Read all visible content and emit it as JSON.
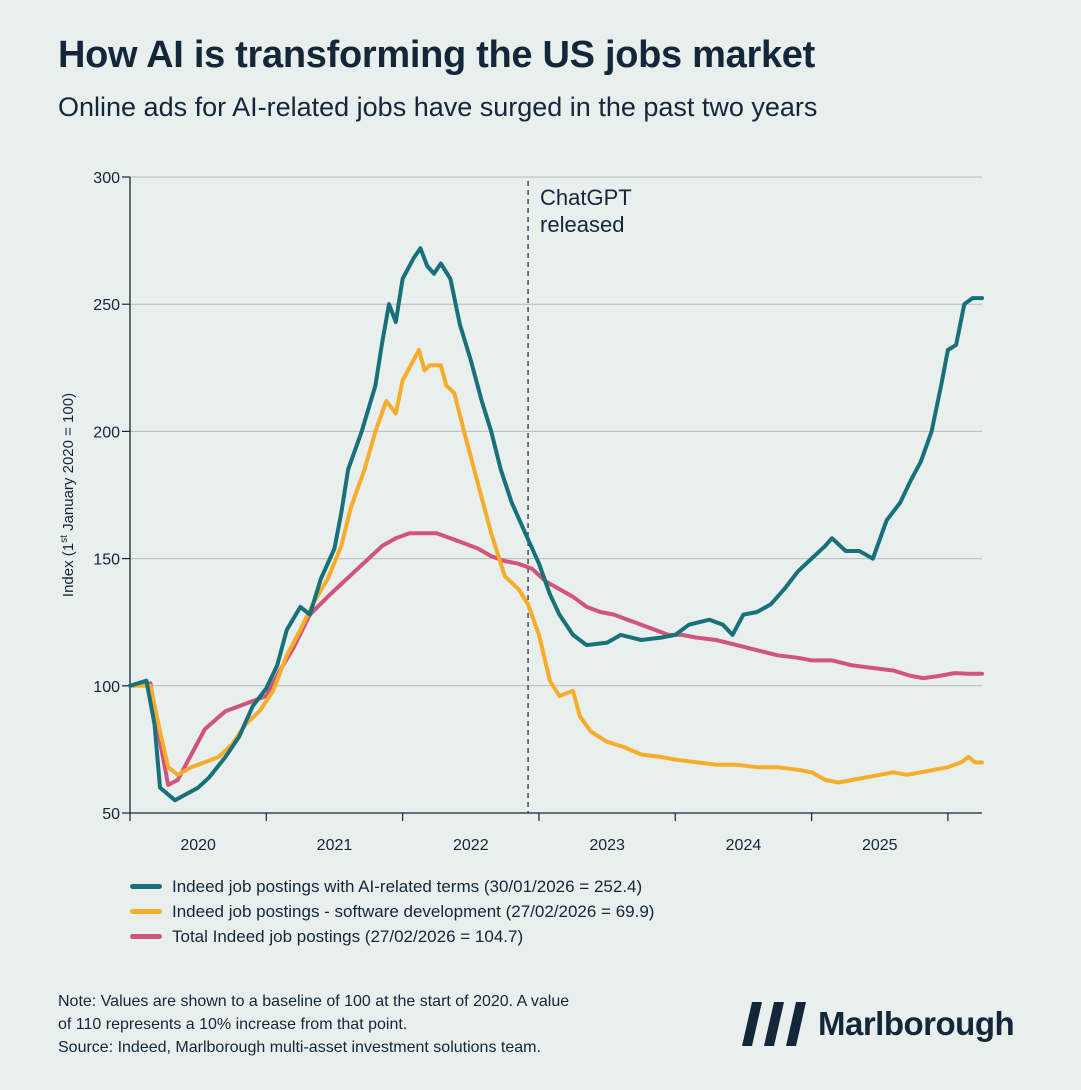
{
  "header": {
    "title": "How AI is transforming the US jobs market",
    "subtitle": "Online ads for AI-related jobs have surged in the past two years"
  },
  "chart_data": {
    "type": "line",
    "ylabel": "Index (1st January 2020 = 100)",
    "ylabel_parts": {
      "pre": "Index (1",
      "sup": "st",
      "post": " January 2020 = 100)"
    },
    "ylim": [
      50,
      300
    ],
    "yticks": [
      50,
      100,
      150,
      200,
      250,
      300
    ],
    "xlim": [
      2020.0,
      2026.25
    ],
    "x_tick_labels": [
      {
        "year": 2020,
        "label": "2020"
      },
      {
        "year": 2021,
        "label": "2021"
      },
      {
        "year": 2022,
        "label": "2022"
      },
      {
        "year": 2023,
        "label": "2023"
      },
      {
        "year": 2024,
        "label": "2024"
      },
      {
        "year": 2025,
        "label": "2025"
      }
    ],
    "x_tick_marks": [
      2020,
      2021,
      2022,
      2023,
      2024,
      2025,
      2026
    ],
    "grid": "horizontal",
    "annotation": {
      "x": 2022.92,
      "lines": [
        "ChatGPT",
        "released"
      ],
      "style": "dashed-vertical"
    },
    "series": [
      {
        "name": "Indeed job postings with AI-related terms (30/01/2026 = 252.4)",
        "color": "#17707a",
        "points": [
          [
            2020.0,
            100
          ],
          [
            2020.12,
            102
          ],
          [
            2020.18,
            85
          ],
          [
            2020.22,
            60
          ],
          [
            2020.33,
            55
          ],
          [
            2020.5,
            60
          ],
          [
            2020.58,
            64
          ],
          [
            2020.7,
            72
          ],
          [
            2020.8,
            80
          ],
          [
            2020.9,
            92
          ],
          [
            2021.0,
            99
          ],
          [
            2021.08,
            108
          ],
          [
            2021.15,
            122
          ],
          [
            2021.25,
            131
          ],
          [
            2021.32,
            128
          ],
          [
            2021.4,
            142
          ],
          [
            2021.5,
            154
          ],
          [
            2021.55,
            168
          ],
          [
            2021.6,
            185
          ],
          [
            2021.7,
            200
          ],
          [
            2021.8,
            218
          ],
          [
            2021.85,
            235
          ],
          [
            2021.9,
            250
          ],
          [
            2021.95,
            243
          ],
          [
            2022.0,
            260
          ],
          [
            2022.08,
            268
          ],
          [
            2022.13,
            272
          ],
          [
            2022.18,
            265
          ],
          [
            2022.23,
            262
          ],
          [
            2022.28,
            266
          ],
          [
            2022.35,
            260
          ],
          [
            2022.42,
            242
          ],
          [
            2022.5,
            228
          ],
          [
            2022.58,
            212
          ],
          [
            2022.65,
            200
          ],
          [
            2022.72,
            185
          ],
          [
            2022.8,
            172
          ],
          [
            2022.9,
            160
          ],
          [
            2023.0,
            148
          ],
          [
            2023.08,
            136
          ],
          [
            2023.15,
            128
          ],
          [
            2023.25,
            120
          ],
          [
            2023.35,
            116
          ],
          [
            2023.5,
            117
          ],
          [
            2023.6,
            120
          ],
          [
            2023.75,
            118
          ],
          [
            2023.9,
            119
          ],
          [
            2024.0,
            120
          ],
          [
            2024.1,
            124
          ],
          [
            2024.25,
            126
          ],
          [
            2024.35,
            124
          ],
          [
            2024.42,
            120
          ],
          [
            2024.5,
            128
          ],
          [
            2024.6,
            129
          ],
          [
            2024.7,
            132
          ],
          [
            2024.8,
            138
          ],
          [
            2024.9,
            145
          ],
          [
            2025.0,
            150
          ],
          [
            2025.1,
            155
          ],
          [
            2025.15,
            158
          ],
          [
            2025.25,
            153
          ],
          [
            2025.35,
            153
          ],
          [
            2025.45,
            150
          ],
          [
            2025.55,
            165
          ],
          [
            2025.65,
            172
          ],
          [
            2025.73,
            181
          ],
          [
            2025.8,
            188
          ],
          [
            2025.88,
            200
          ],
          [
            2025.95,
            218
          ],
          [
            2026.0,
            232
          ],
          [
            2026.06,
            234
          ],
          [
            2026.12,
            250
          ],
          [
            2026.18,
            252.4
          ],
          [
            2026.25,
            252.4
          ]
        ]
      },
      {
        "name": "Indeed job postings - software development (27/02/2026 = 69.9)",
        "color": "#f5ad2b",
        "points": [
          [
            2020.0,
            100
          ],
          [
            2020.15,
            100
          ],
          [
            2020.22,
            82
          ],
          [
            2020.28,
            68
          ],
          [
            2020.35,
            65
          ],
          [
            2020.45,
            68
          ],
          [
            2020.55,
            70
          ],
          [
            2020.65,
            72
          ],
          [
            2020.75,
            77
          ],
          [
            2020.85,
            85
          ],
          [
            2020.95,
            90
          ],
          [
            2021.05,
            98
          ],
          [
            2021.15,
            112
          ],
          [
            2021.25,
            122
          ],
          [
            2021.35,
            133
          ],
          [
            2021.45,
            142
          ],
          [
            2021.55,
            155
          ],
          [
            2021.62,
            170
          ],
          [
            2021.72,
            185
          ],
          [
            2021.8,
            200
          ],
          [
            2021.88,
            212
          ],
          [
            2021.95,
            207
          ],
          [
            2022.0,
            220
          ],
          [
            2022.08,
            228
          ],
          [
            2022.12,
            232
          ],
          [
            2022.16,
            224
          ],
          [
            2022.2,
            226
          ],
          [
            2022.28,
            226
          ],
          [
            2022.32,
            218
          ],
          [
            2022.38,
            215
          ],
          [
            2022.45,
            200
          ],
          [
            2022.55,
            180
          ],
          [
            2022.65,
            160
          ],
          [
            2022.75,
            143
          ],
          [
            2022.85,
            138
          ],
          [
            2022.92,
            132
          ],
          [
            2023.0,
            120
          ],
          [
            2023.08,
            102
          ],
          [
            2023.15,
            96
          ],
          [
            2023.25,
            98
          ],
          [
            2023.3,
            88
          ],
          [
            2023.38,
            82
          ],
          [
            2023.5,
            78
          ],
          [
            2023.62,
            76
          ],
          [
            2023.75,
            73
          ],
          [
            2023.9,
            72
          ],
          [
            2024.0,
            71
          ],
          [
            2024.15,
            70
          ],
          [
            2024.3,
            69
          ],
          [
            2024.45,
            69
          ],
          [
            2024.6,
            68
          ],
          [
            2024.75,
            68
          ],
          [
            2024.9,
            67
          ],
          [
            2025.0,
            66
          ],
          [
            2025.1,
            63
          ],
          [
            2025.2,
            62
          ],
          [
            2025.3,
            63
          ],
          [
            2025.4,
            64
          ],
          [
            2025.5,
            65
          ],
          [
            2025.6,
            66
          ],
          [
            2025.7,
            65
          ],
          [
            2025.8,
            66
          ],
          [
            2025.9,
            67
          ],
          [
            2026.0,
            68
          ],
          [
            2026.1,
            70
          ],
          [
            2026.15,
            72
          ],
          [
            2026.2,
            69.9
          ],
          [
            2026.25,
            69.9
          ]
        ]
      },
      {
        "name": "Total Indeed job postings (27/02/2026 = 104.7)",
        "color": "#d1547e",
        "points": [
          [
            2020.0,
            100
          ],
          [
            2020.15,
            101
          ],
          [
            2020.22,
            78
          ],
          [
            2020.28,
            61
          ],
          [
            2020.35,
            63
          ],
          [
            2020.45,
            73
          ],
          [
            2020.55,
            83
          ],
          [
            2020.7,
            90
          ],
          [
            2020.85,
            93
          ],
          [
            2021.0,
            96
          ],
          [
            2021.1,
            106
          ],
          [
            2021.2,
            115
          ],
          [
            2021.32,
            128
          ],
          [
            2021.45,
            135
          ],
          [
            2021.55,
            140
          ],
          [
            2021.65,
            145
          ],
          [
            2021.75,
            150
          ],
          [
            2021.85,
            155
          ],
          [
            2021.95,
            158
          ],
          [
            2022.05,
            160
          ],
          [
            2022.15,
            160
          ],
          [
            2022.25,
            160
          ],
          [
            2022.35,
            158
          ],
          [
            2022.45,
            156
          ],
          [
            2022.55,
            154
          ],
          [
            2022.65,
            151
          ],
          [
            2022.75,
            149
          ],
          [
            2022.85,
            148
          ],
          [
            2022.95,
            146
          ],
          [
            2023.05,
            141
          ],
          [
            2023.15,
            138
          ],
          [
            2023.25,
            135
          ],
          [
            2023.35,
            131
          ],
          [
            2023.45,
            129
          ],
          [
            2023.55,
            128
          ],
          [
            2023.65,
            126
          ],
          [
            2023.75,
            124
          ],
          [
            2023.85,
            122
          ],
          [
            2023.95,
            120
          ],
          [
            2024.05,
            120
          ],
          [
            2024.15,
            119
          ],
          [
            2024.3,
            118
          ],
          [
            2024.45,
            116
          ],
          [
            2024.6,
            114
          ],
          [
            2024.75,
            112
          ],
          [
            2024.9,
            111
          ],
          [
            2025.0,
            110
          ],
          [
            2025.15,
            110
          ],
          [
            2025.3,
            108
          ],
          [
            2025.45,
            107
          ],
          [
            2025.6,
            106
          ],
          [
            2025.72,
            104
          ],
          [
            2025.82,
            103
          ],
          [
            2025.95,
            104
          ],
          [
            2026.05,
            105
          ],
          [
            2026.15,
            104.7
          ],
          [
            2026.25,
            104.7
          ]
        ]
      }
    ]
  },
  "legend": {
    "items": [
      {
        "label": "Indeed job postings with AI-related terms (30/01/2026 = 252.4)",
        "color": "#17707a"
      },
      {
        "label": "Indeed job postings - software development (27/02/2026 = 69.9)",
        "color": "#f5ad2b"
      },
      {
        "label": "Total Indeed job postings (27/02/2026 = 104.7)",
        "color": "#d1547e"
      }
    ]
  },
  "footer": {
    "note_line1": "Note: Values are shown to a baseline of 100 at the start of 2020. A value",
    "note_line2": "of 110 represents a 10% increase from that point.",
    "source": "Source: Indeed, Marlborough multi-asset investment solutions team.",
    "brand": "Marlborough"
  }
}
